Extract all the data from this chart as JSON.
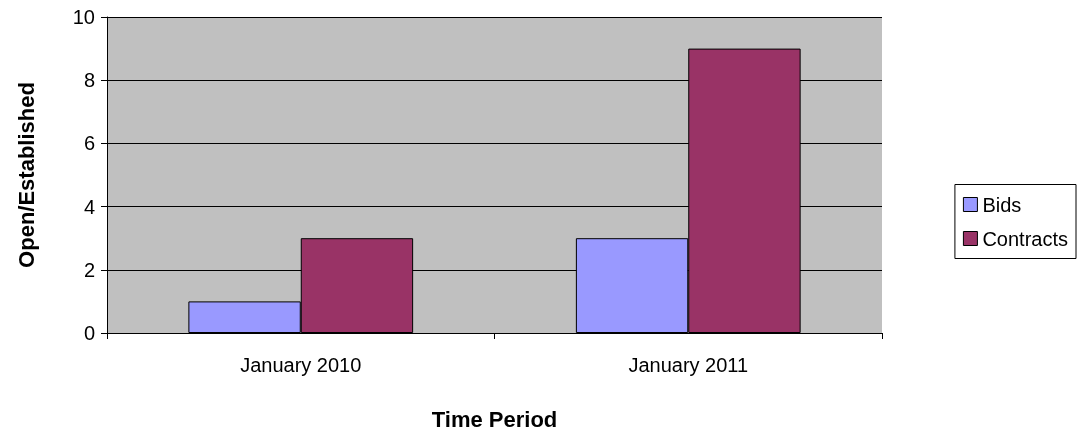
{
  "chart_data": {
    "type": "bar",
    "xlabel": "Time Period",
    "ylabel": "Open/Established",
    "categories": [
      "January 2010",
      "January 2011"
    ],
    "series": [
      {
        "name": "Bids",
        "color": "#9999ff",
        "values": [
          1,
          3
        ]
      },
      {
        "name": "Contracts",
        "color": "#993366",
        "values": [
          3,
          9
        ]
      }
    ],
    "ylim": [
      0,
      10
    ],
    "yticks": [
      0,
      2,
      4,
      6,
      8,
      10
    ],
    "grid": "y",
    "legend": "right"
  }
}
